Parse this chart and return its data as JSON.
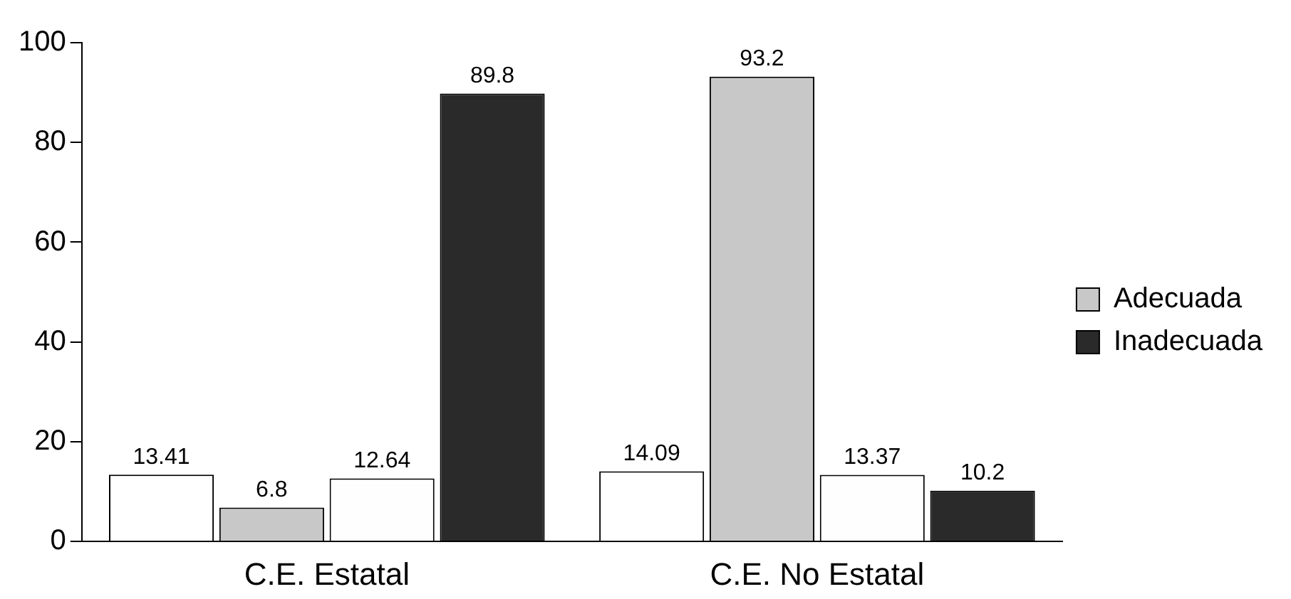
{
  "chart_data": {
    "type": "bar",
    "categories": [
      "C.E. Estatal",
      "C.E. No Estatal"
    ],
    "series": [
      {
        "color": "#ffffff",
        "values": [
          13.41,
          14.09
        ]
      },
      {
        "name": "Adecuada",
        "color": "#c8c8c8",
        "values": [
          6.8,
          93.2
        ]
      },
      {
        "color": "#fefefe",
        "values": [
          12.64,
          13.37
        ]
      },
      {
        "name": "Inadecuada",
        "color": "#2a2a2a",
        "values": [
          89.8,
          10.2
        ]
      }
    ],
    "ylim": [
      0,
      100
    ],
    "yticks": [
      0,
      20,
      40,
      60,
      80,
      100
    ],
    "grid": false,
    "legend": "right",
    "data_labels": true
  }
}
